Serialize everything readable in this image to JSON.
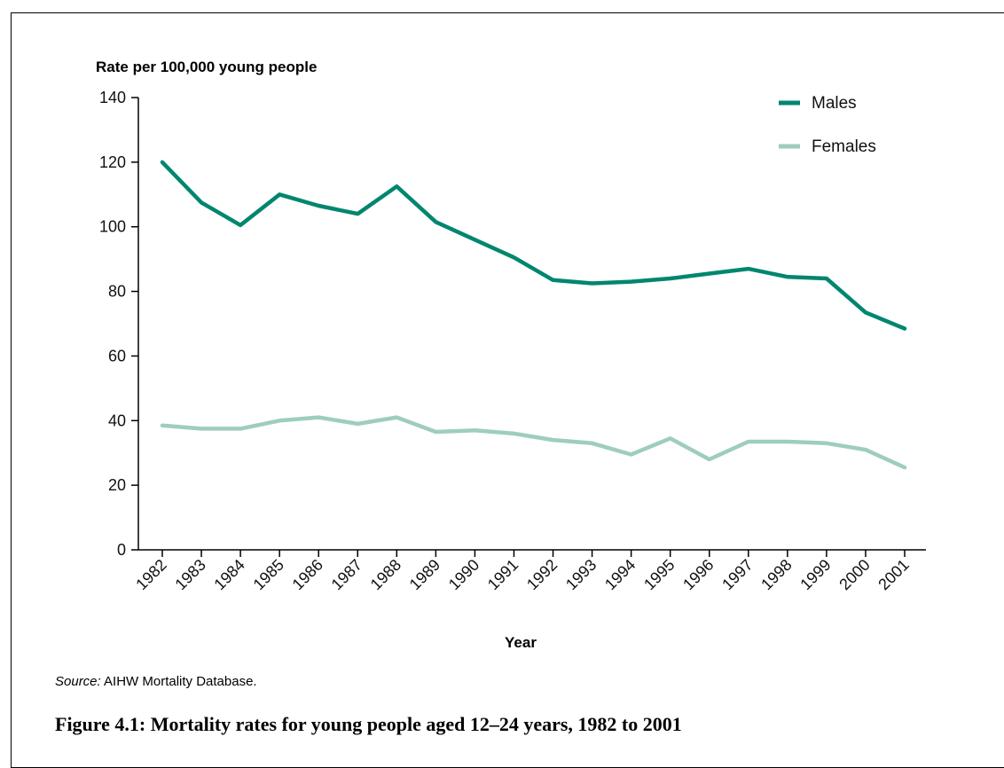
{
  "chart_data": {
    "type": "line",
    "ylabel": "Rate per 100,000 young people",
    "xlabel": "Year",
    "x": [
      "1982",
      "1983",
      "1984",
      "1985",
      "1986",
      "1987",
      "1988",
      "1989",
      "1990",
      "1991",
      "1992",
      "1993",
      "1994",
      "1995",
      "1996",
      "1997",
      "1998",
      "1999",
      "2000",
      "2001"
    ],
    "ylim": [
      0,
      140
    ],
    "yticks": [
      "0",
      "20",
      "40",
      "60",
      "80",
      "100",
      "120",
      "140"
    ],
    "legend_position": "top-right",
    "grid": false,
    "series": [
      {
        "name": "Males",
        "color": "#00866f",
        "values": [
          120,
          107.5,
          100.5,
          110,
          106.5,
          104,
          112.5,
          101.5,
          96,
          90.5,
          83.5,
          82.5,
          83,
          84,
          85.5,
          87,
          84.5,
          84,
          73.5,
          68.5
        ]
      },
      {
        "name": "Females",
        "color": "#9ecdc0",
        "values": [
          38.5,
          37.5,
          37.5,
          40,
          41,
          39,
          41,
          36.5,
          37,
          36,
          34,
          33,
          29.5,
          34.5,
          28,
          33.5,
          33.5,
          33,
          31,
          25.5
        ]
      }
    ]
  },
  "source": {
    "label": "Source:",
    "text": " AIHW Mortality Database."
  },
  "caption": "Figure 4.1: Mortality rates for young people aged 12–24 years, 1982 to 2001"
}
